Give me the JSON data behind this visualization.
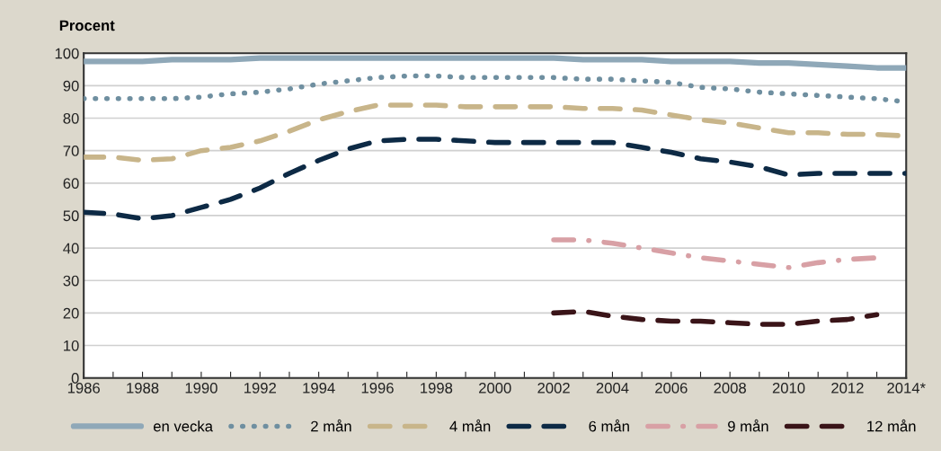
{
  "chart_data": {
    "type": "line",
    "ylabel": "Procent",
    "x": [
      1986,
      1987,
      1988,
      1989,
      1990,
      1991,
      1992,
      1993,
      1994,
      1995,
      1996,
      1997,
      1998,
      1999,
      2000,
      2001,
      2002,
      2003,
      2004,
      2005,
      2006,
      2007,
      2008,
      2009,
      2010,
      2011,
      2012,
      2013,
      2014
    ],
    "series": [
      {
        "name": "en vecka",
        "color": "#8fa8b8",
        "line_style": "solid",
        "values": [
          97.5,
          97.5,
          97.5,
          98,
          98,
          98,
          98.5,
          98.5,
          98.5,
          98.5,
          98.5,
          98.5,
          98.5,
          98.5,
          98.5,
          98.5,
          98.5,
          98,
          98,
          98,
          97.5,
          97.5,
          97.5,
          97,
          97,
          96.5,
          96,
          95.5,
          95.5
        ]
      },
      {
        "name": "2 mån",
        "color": "#6f8fa0",
        "line_style": "dotted",
        "values": [
          86,
          86,
          86,
          86,
          86.5,
          87.5,
          88,
          89,
          90.5,
          91.5,
          92.5,
          93,
          93,
          92.5,
          92.5,
          92.5,
          92.5,
          92,
          92,
          91.5,
          91,
          89.5,
          89,
          88,
          87.5,
          87,
          86.5,
          86,
          85
        ]
      },
      {
        "name": "4 mån",
        "color": "#c8b58a",
        "line_style": "dashed",
        "values": [
          68,
          68,
          67,
          67.5,
          70,
          71,
          73,
          76,
          79.5,
          82,
          84,
          84,
          84,
          83.5,
          83.5,
          83.5,
          83.5,
          83,
          83,
          82.5,
          81,
          79.5,
          78.5,
          77,
          75.5,
          75.5,
          75,
          75,
          74.5
        ]
      },
      {
        "name": "6 mån",
        "color": "#0d2a45",
        "line_style": "dashed",
        "values": [
          51,
          50.5,
          49,
          50,
          52.5,
          55,
          58.5,
          63,
          67,
          70.5,
          73,
          73.5,
          73.5,
          73,
          72.5,
          72.5,
          72.5,
          72.5,
          72.5,
          71,
          69.5,
          67.5,
          66.5,
          65,
          62.5,
          63,
          63,
          63,
          63
        ]
      },
      {
        "name": "9 mån",
        "color": "#d8a0a5",
        "line_style": "dashdot",
        "values": [
          null,
          null,
          null,
          null,
          null,
          null,
          null,
          null,
          null,
          null,
          null,
          null,
          null,
          null,
          null,
          null,
          42.5,
          42.5,
          41.5,
          40,
          38.5,
          37,
          36,
          35,
          34,
          35.5,
          36.5,
          37,
          null
        ]
      },
      {
        "name": "12 mån",
        "color": "#3a1418",
        "line_style": "dashed",
        "values": [
          null,
          null,
          null,
          null,
          null,
          null,
          null,
          null,
          null,
          null,
          null,
          null,
          null,
          null,
          null,
          null,
          20,
          20.5,
          19,
          18,
          17.5,
          17.5,
          17,
          16.5,
          16.5,
          17.5,
          18,
          19.5,
          null
        ]
      }
    ],
    "xlim": [
      1986,
      2014
    ],
    "xticks": [
      {
        "value": 1986,
        "label": "1986"
      },
      {
        "value": 1987,
        "label": null
      },
      {
        "value": 1988,
        "label": "1988"
      },
      {
        "value": 1989,
        "label": null
      },
      {
        "value": 1990,
        "label": "1990"
      },
      {
        "value": 1991,
        "label": null
      },
      {
        "value": 1992,
        "label": "1992"
      },
      {
        "value": 1993,
        "label": null
      },
      {
        "value": 1994,
        "label": "1994"
      },
      {
        "value": 1995,
        "label": null
      },
      {
        "value": 1996,
        "label": "1996"
      },
      {
        "value": 1997,
        "label": null
      },
      {
        "value": 1998,
        "label": "1998"
      },
      {
        "value": 1999,
        "label": null
      },
      {
        "value": 2000,
        "label": "2000"
      },
      {
        "value": 2001,
        "label": null
      },
      {
        "value": 2002,
        "label": "2002"
      },
      {
        "value": 2003,
        "label": null
      },
      {
        "value": 2004,
        "label": "2004"
      },
      {
        "value": 2005,
        "label": null
      },
      {
        "value": 2006,
        "label": "2006"
      },
      {
        "value": 2007,
        "label": null
      },
      {
        "value": 2008,
        "label": "2008"
      },
      {
        "value": 2009,
        "label": null
      },
      {
        "value": 2010,
        "label": "2010"
      },
      {
        "value": 2011,
        "label": null
      },
      {
        "value": 2012,
        "label": "2012"
      },
      {
        "value": 2013,
        "label": null
      },
      {
        "value": 2014,
        "label": "2014*"
      }
    ],
    "ylim": [
      0,
      100
    ],
    "yticks": [
      0,
      10,
      20,
      30,
      40,
      50,
      60,
      70,
      80,
      90,
      100
    ],
    "grid": "y",
    "legend": "bottom",
    "marker": "none"
  }
}
